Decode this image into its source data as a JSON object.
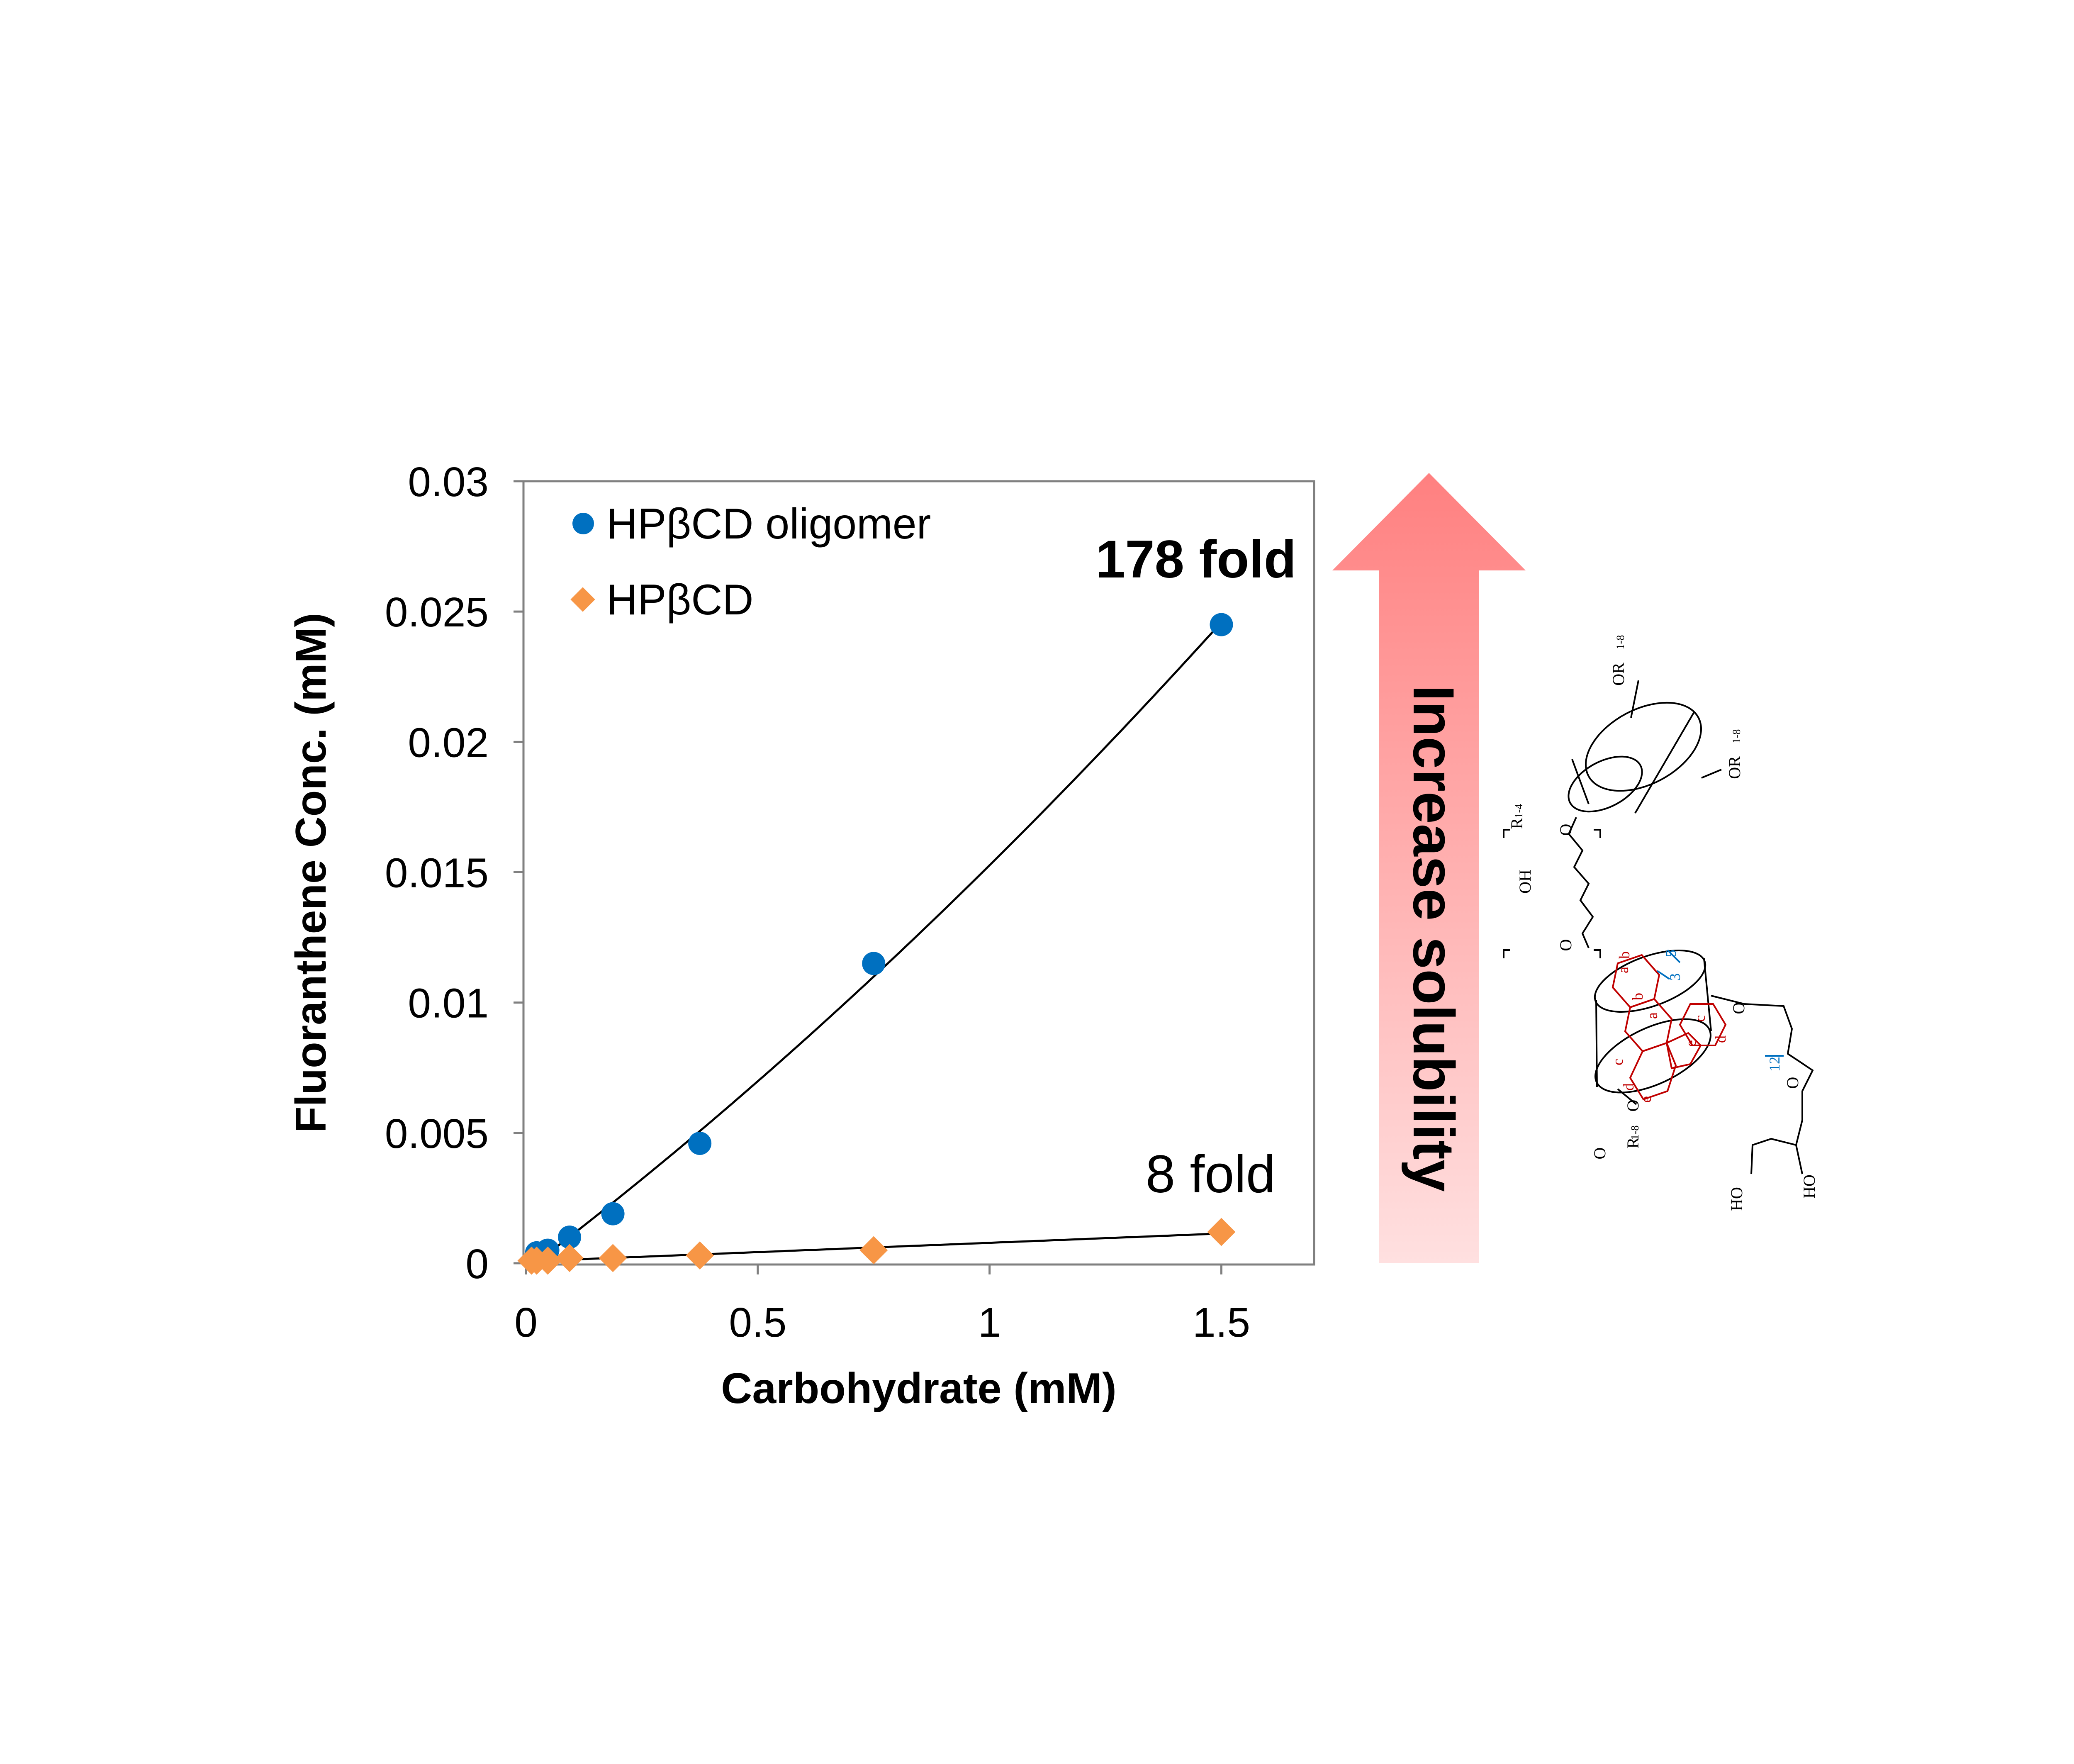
{
  "chart_data": {
    "type": "scatter",
    "xlabel": "Carbohydrate (mM)",
    "ylabel": "Fluoranthene Conc. (mM)",
    "xlim": [
      0,
      1.7
    ],
    "ylim": [
      0,
      0.03
    ],
    "x_ticks": [
      0,
      0.5,
      1,
      1.5
    ],
    "x_tick_labels": [
      "0",
      "0.5",
      "1",
      "1.5"
    ],
    "y_ticks": [
      0,
      0.005,
      0.01,
      0.015,
      0.02,
      0.025,
      0.03
    ],
    "y_tick_labels": [
      "0",
      "0.005",
      "0.01",
      "0.015",
      "0.02",
      "0.025",
      "0.03"
    ],
    "grid": false,
    "legend_position": "top-left",
    "series": [
      {
        "name": "HPβCD oligomer",
        "marker": "circle",
        "color": "#0070C0",
        "x": [
          0.023,
          0.047,
          0.094,
          0.1875,
          0.375,
          0.75,
          1.5
        ],
        "y": [
          0.0004,
          0.0005,
          0.001,
          0.0019,
          0.0046,
          0.0115,
          0.0245
        ],
        "trend": "polynomial"
      },
      {
        "name": "HPβCD",
        "marker": "diamond",
        "color": "#F79646",
        "x": [
          0.012,
          0.023,
          0.047,
          0.094,
          0.1875,
          0.375,
          0.75,
          1.5
        ],
        "y": [
          0.0001,
          0.0001,
          0.0001,
          0.0002,
          0.0002,
          0.0003,
          0.0005,
          0.0012
        ],
        "trend": "linear"
      }
    ],
    "annotations": [
      "178 fold",
      "8 fold"
    ]
  },
  "arrow": {
    "label": "Increase solubility",
    "color_top": "#FF8080",
    "color_bottom": "#FFE0E0"
  },
  "structure": {
    "labels": [
      "OR",
      "1-8",
      "OR",
      "1-8",
      "R",
      "1-4",
      "O",
      "OH",
      "O",
      "O",
      "R",
      "1-8",
      "O",
      "HO",
      "HO",
      "a",
      "b",
      "b",
      "a",
      "c",
      "c",
      "d",
      "d",
      "e",
      "e",
      "5",
      "3",
      "12",
      "O",
      "O"
    ],
    "line_color": "#000000",
    "guest_color": "#C00000",
    "proton_color": "#0070C0"
  }
}
